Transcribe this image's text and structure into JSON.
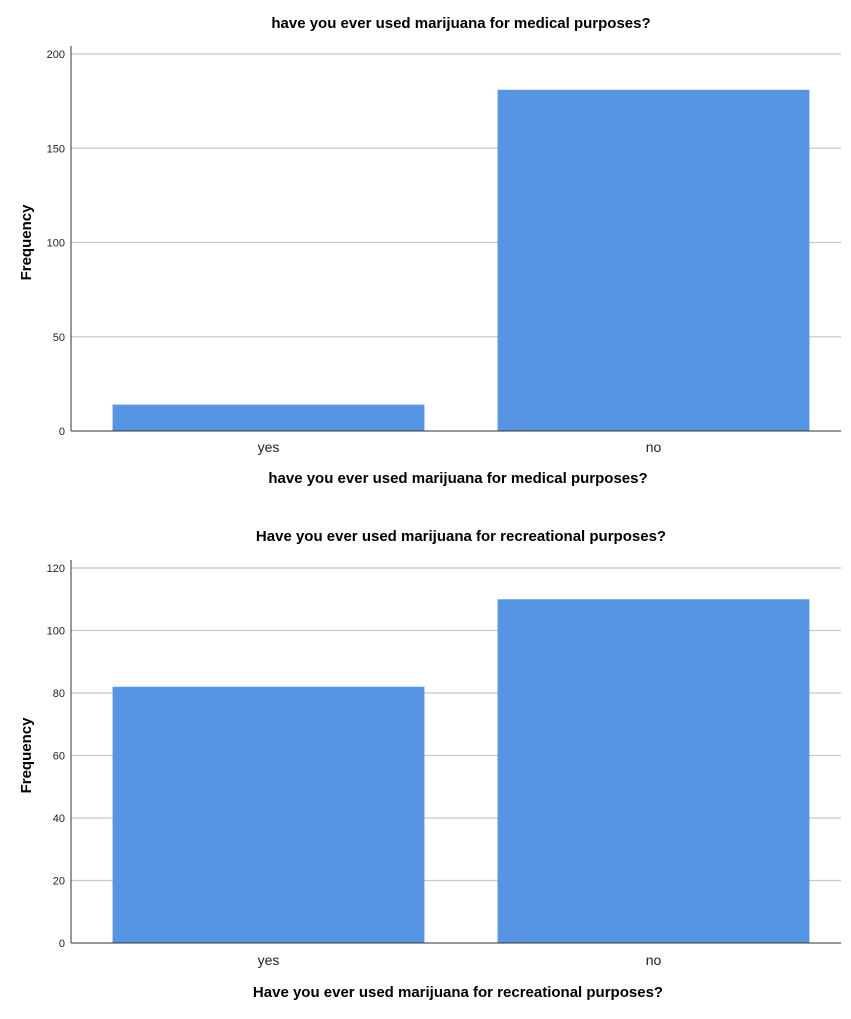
{
  "chart_data": [
    {
      "type": "bar",
      "title": "have  you ever used marijuana for medical purposes?",
      "xlabel": "have  you ever used marijuana for medical purposes?",
      "ylabel": "Frequency",
      "categories": [
        "yes",
        "no"
      ],
      "values": [
        14,
        181
      ],
      "ylim": [
        0,
        200
      ],
      "yticks": [
        0,
        50,
        100,
        150,
        200
      ],
      "grid": true,
      "bar_color": "#5595E3"
    },
    {
      "type": "bar",
      "title": "Have you ever used marijuana for recreational purposes?",
      "xlabel": "Have you ever used marijuana for recreational purposes?",
      "ylabel": "Frequency",
      "categories": [
        "yes",
        "no"
      ],
      "values": [
        82,
        110
      ],
      "ylim": [
        0,
        120
      ],
      "yticks": [
        0,
        20,
        40,
        60,
        80,
        100,
        120
      ],
      "grid": true,
      "bar_color": "#5595E3"
    }
  ]
}
